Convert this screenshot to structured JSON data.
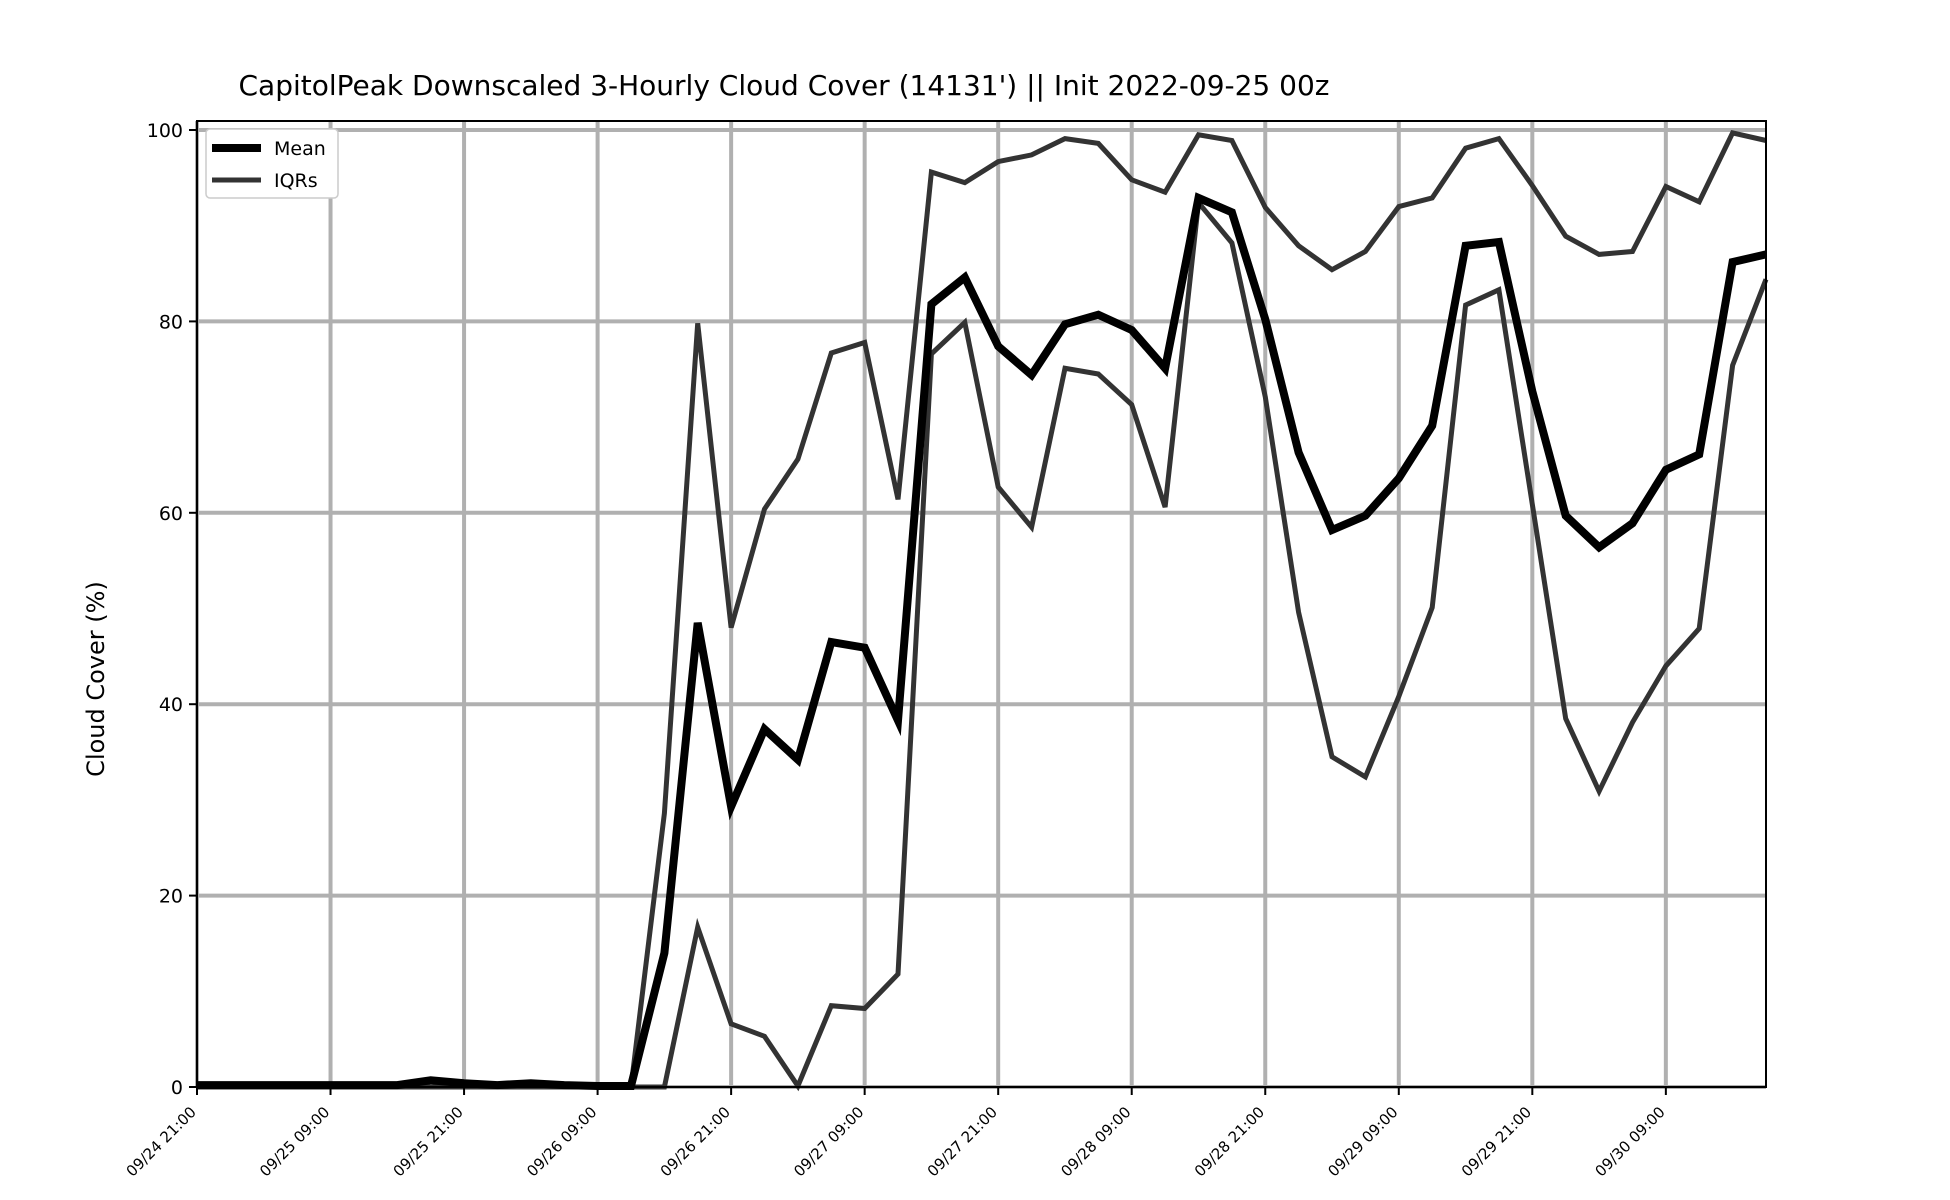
{
  "chart_data": {
    "type": "line",
    "title": "CapitolPeak Downscaled 3-Hourly Cloud Cover (14131') || Init 2022-09-25 00z",
    "xlabel": "",
    "ylabel": "Cloud Cover (%)",
    "ylim": [
      0,
      100
    ],
    "yticks": [
      0,
      20,
      40,
      60,
      80,
      100
    ],
    "x_start": "09/24 21:00",
    "x_step_hours": 3,
    "xticks": [
      "09/24 21:00",
      "09/25 09:00",
      "09/25 21:00",
      "09/26 09:00",
      "09/26 21:00",
      "09/27 09:00",
      "09/27 21:00",
      "09/28 09:00",
      "09/28 21:00",
      "09/29 09:00",
      "09/29 21:00",
      "09/30 09:00"
    ],
    "grid": true,
    "legend": {
      "position": "top-left",
      "entries": [
        "Mean",
        "IQRs"
      ]
    },
    "series": [
      {
        "name": "Mean",
        "color": "#000000",
        "values": [
          0.2,
          0.2,
          0.2,
          0.2,
          0.2,
          0.2,
          0.2,
          0.7,
          0.4,
          0.2,
          0.4,
          0.2,
          0.1,
          0.1,
          14.0,
          48.5,
          29.3,
          37.4,
          34.2,
          46.5,
          45.9,
          38.3,
          81.8,
          84.6,
          77.4,
          74.4,
          79.7,
          80.7,
          79.1,
          75.1,
          92.9,
          91.4,
          80.2,
          66.3,
          58.2,
          59.7,
          63.6,
          69.1,
          87.9,
          88.3,
          72.7,
          59.7,
          56.4,
          58.9,
          64.5,
          66.1,
          86.2,
          87.0
        ]
      },
      {
        "name": "IQRs",
        "color": "#333333",
        "values": [
          0,
          0,
          0,
          0,
          0,
          0,
          0,
          0,
          0,
          0,
          0,
          0,
          0,
          0,
          28.6,
          79.8,
          48.0,
          60.4,
          65.6,
          76.7,
          77.8,
          61.4,
          95.6,
          94.5,
          96.7,
          97.4,
          99.1,
          98.6,
          94.8,
          93.5,
          99.5,
          98.9,
          91.9,
          87.9,
          85.4,
          87.3,
          92.0,
          92.9,
          98.1,
          99.1,
          94.2,
          88.9,
          87.0,
          87.3,
          94.1,
          92.5,
          99.7,
          98.9
        ]
      },
      {
        "name": "",
        "color": "#333333",
        "values": [
          0,
          0,
          0,
          0,
          0,
          0,
          0,
          0,
          0,
          0,
          0,
          0,
          0,
          0,
          0,
          16.7,
          6.6,
          5.3,
          0.1,
          8.5,
          8.2,
          11.8,
          76.6,
          79.9,
          62.7,
          58.5,
          75.1,
          74.5,
          71.3,
          60.6,
          92.4,
          88.2,
          72.1,
          49.6,
          34.5,
          32.4,
          40.8,
          50.1,
          81.7,
          83.3,
          60.9,
          38.5,
          30.9,
          38.1,
          44.0,
          47.9,
          75.4,
          84.4
        ]
      }
    ]
  }
}
